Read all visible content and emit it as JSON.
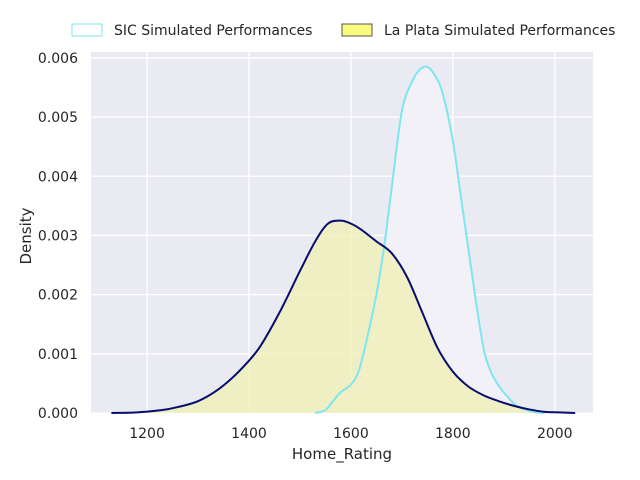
{
  "chart_data": {
    "type": "area",
    "title": "",
    "xlabel": "Home_Rating",
    "ylabel": "Density",
    "xlim": [
      1090,
      2075
    ],
    "ylim": [
      0,
      0.0061
    ],
    "xticks": [
      1200,
      1400,
      1600,
      1800,
      2000
    ],
    "xtick_labels": [
      "1200",
      "1400",
      "1600",
      "1800",
      "2000"
    ],
    "yticks": [
      0,
      0.001,
      0.002,
      0.003,
      0.004,
      0.005,
      0.006
    ],
    "ytick_labels": [
      "0.000",
      "0.001",
      "0.002",
      "0.003",
      "0.004",
      "0.005",
      "0.006"
    ],
    "grid": true,
    "legend_position": "top-center",
    "series": [
      {
        "name": "SIC Simulated Performances",
        "line_color": "#7ee6ee",
        "fill_color": "#f2f1f7",
        "x": [
          1530,
          1550,
          1565,
          1580,
          1600,
          1615,
          1630,
          1650,
          1665,
          1680,
          1700,
          1720,
          1735,
          1750,
          1765,
          1780,
          1800,
          1815,
          1830,
          1845,
          1860,
          1870,
          1880,
          1895,
          1910,
          1925,
          1945,
          1965,
          1980
        ],
        "y": [
          0.0,
          5e-05,
          0.0002,
          0.00035,
          0.00048,
          0.0007,
          0.0012,
          0.002,
          0.0028,
          0.0038,
          0.0051,
          0.0056,
          0.0058,
          0.00585,
          0.0057,
          0.0054,
          0.0046,
          0.0037,
          0.0028,
          0.0019,
          0.0011,
          0.0008,
          0.0006,
          0.0004,
          0.00025,
          0.00012,
          5e-05,
          1e-05,
          0.0
        ]
      },
      {
        "name": "La Plata Simulated Performances",
        "line_color": "#060d6e",
        "fill_color": "#f0f0b8",
        "x": [
          1130,
          1180,
          1230,
          1260,
          1300,
          1340,
          1380,
          1420,
          1460,
          1500,
          1530,
          1555,
          1580,
          1600,
          1620,
          1650,
          1680,
          1710,
          1740,
          1770,
          1800,
          1830,
          1860,
          1890,
          1920,
          1950,
          1980,
          2010,
          2040
        ],
        "y": [
          0.0,
          1e-05,
          5e-05,
          0.0001,
          0.0002,
          0.0004,
          0.0007,
          0.0011,
          0.0017,
          0.0024,
          0.0029,
          0.0032,
          0.00325,
          0.0032,
          0.0031,
          0.0029,
          0.0027,
          0.0023,
          0.0017,
          0.0011,
          0.0007,
          0.00045,
          0.0003,
          0.0002,
          0.00012,
          6e-05,
          2e-05,
          1e-05,
          0.0
        ]
      }
    ]
  }
}
